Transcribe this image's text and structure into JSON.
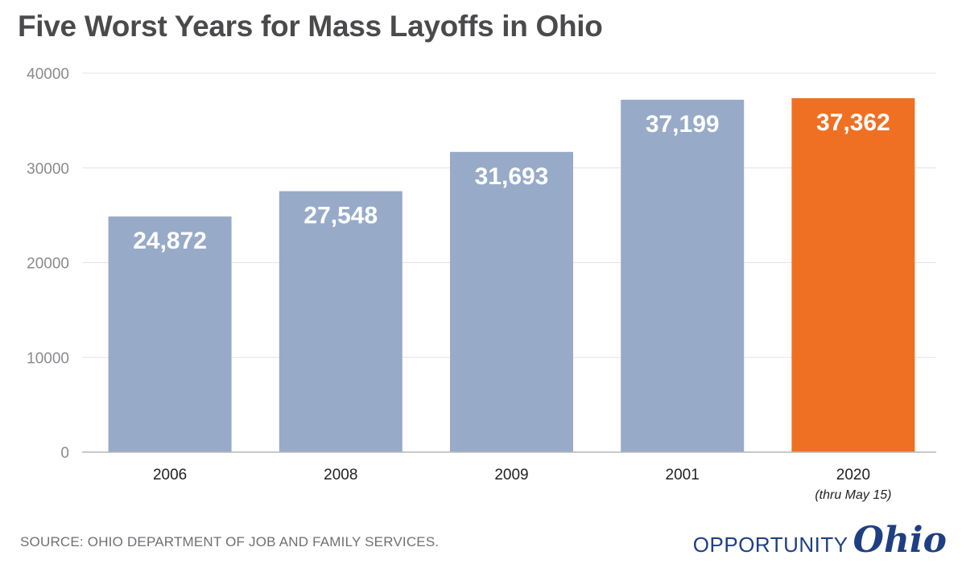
{
  "title": "Five Worst Years for Mass Layoffs in Ohio",
  "source": "SOURCE: OHIO DEPARTMENT OF JOB AND FAMILY SERVICES.",
  "logo": {
    "word": "OPPORTUNITY",
    "script": "Ohio"
  },
  "colors": {
    "bar": "#97abc8",
    "highlight": "#f07023",
    "grid": "#e3e3e3",
    "axis_text": "#8a8a8e"
  },
  "chart_data": {
    "type": "bar",
    "categories": [
      "2006",
      "2008",
      "2009",
      "2001",
      "2020"
    ],
    "category_notes": [
      "",
      "",
      "",
      "",
      "(thru May 15)"
    ],
    "values": [
      24872,
      27548,
      31693,
      37199,
      37362
    ],
    "data_labels": [
      "24,872",
      "27,548",
      "31,693",
      "37,199",
      "37,362"
    ],
    "highlight_index": 4,
    "yticks": [
      0,
      10000,
      20000,
      30000,
      40000
    ],
    "ylim": [
      0,
      40000
    ],
    "grid": true,
    "legend": "none"
  }
}
